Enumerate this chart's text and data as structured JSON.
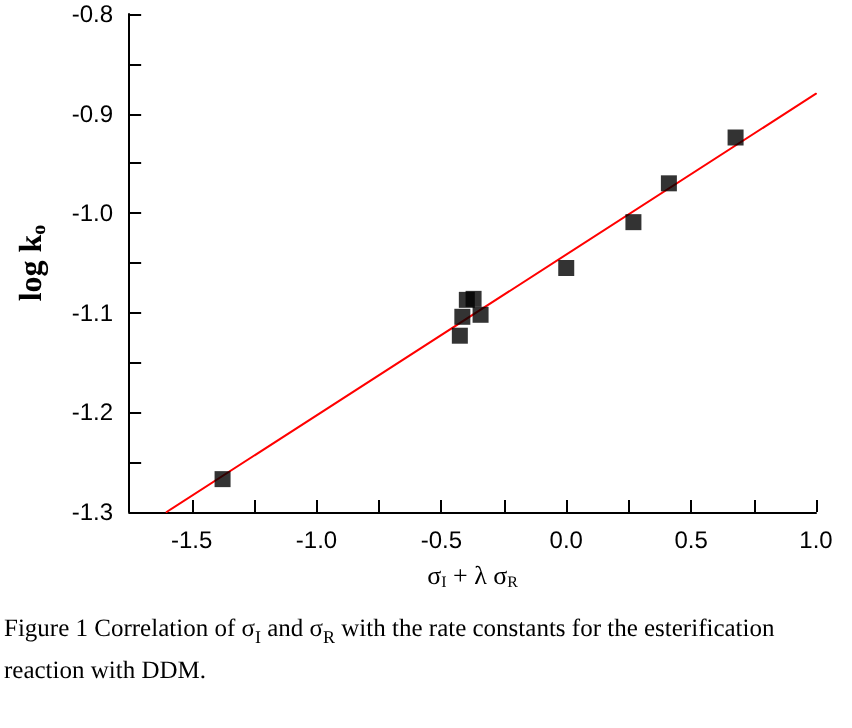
{
  "chart_data": {
    "type": "scatter",
    "xlabel": "σ$_{I}$ + λ σ$_{R}$",
    "ylabel": "log k$_{o}$",
    "annotations": [
      "Figure 1   Correlation of σ$_{I}$ and σ$_{R}$ with the rate constants for the esterification reaction with DDM."
    ],
    "xlim": [
      -1.75,
      1.0
    ],
    "ylim": [
      -1.3,
      -0.8
    ],
    "xticks": [
      {
        "value": -1.5,
        "label": "-1.5"
      },
      {
        "value": -1.25,
        "label": null
      },
      {
        "value": -1.0,
        "label": "-1.0"
      },
      {
        "value": -0.75,
        "label": null
      },
      {
        "value": -0.5,
        "label": "-0.5"
      },
      {
        "value": -0.25,
        "label": null
      },
      {
        "value": 0,
        "label": "0.0"
      },
      {
        "value": 0.25,
        "label": null
      },
      {
        "value": 0.5,
        "label": "0.5"
      },
      {
        "value": 0.75,
        "label": null
      },
      {
        "value": 1.0,
        "label": "1.0"
      }
    ],
    "yticks": [
      {
        "value": -1.3,
        "label": "-1.3"
      },
      {
        "value": -1.25,
        "label": null
      },
      {
        "value": -1.2,
        "label": "-1.2"
      },
      {
        "value": -1.15,
        "label": null
      },
      {
        "value": -1.1,
        "label": "-1.1"
      },
      {
        "value": -1.05,
        "label": null
      },
      {
        "value": -1.0,
        "label": "-1.0"
      },
      {
        "value": -0.95,
        "label": null
      },
      {
        "value": -0.9,
        "label": "-0.9"
      },
      {
        "value": -0.85,
        "label": null
      },
      {
        "value": -0.8,
        "label": "-0.8"
      }
    ],
    "series": [
      {
        "color": "#000000",
        "marker": "square",
        "x": [
          -1.376,
          -0.426,
          -0.416,
          -0.398,
          -0.371,
          -0.343,
          0.0,
          0.269,
          0.411,
          0.678
        ],
        "values": [
          -1.267,
          -1.123,
          -1.104,
          -1.087,
          -1.086,
          -1.102,
          -1.055,
          -1.009,
          -0.97,
          -0.924
        ]
      },
      {
        "type": "line",
        "color": "#ff0000",
        "marker": "none",
        "line_style": "solid",
        "x": [
          -1.6,
          1.0
        ],
        "values": [
          -1.3,
          -0.88
        ]
      }
    ]
  }
}
